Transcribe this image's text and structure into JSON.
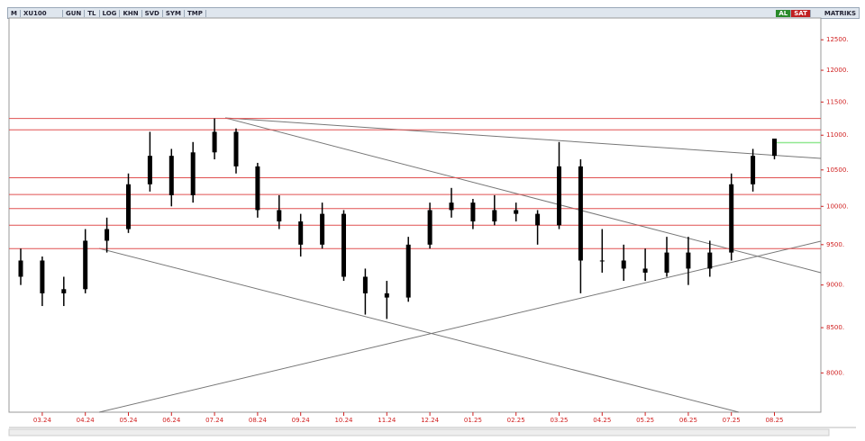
{
  "toolbar": {
    "logo": "M",
    "symbol": "XU100",
    "buttons": [
      "GUN",
      "TL",
      "LOG",
      "KHN",
      "SVD",
      "SYM",
      "TMP"
    ],
    "buy": "AL",
    "sell": "SAT",
    "brand": "MATRIKS"
  },
  "chart_data": {
    "type": "candlestick",
    "log_scale": true,
    "color": "#000000",
    "categories": [
      null,
      "03.24",
      null,
      "04.24",
      null,
      "05.24",
      null,
      "06.24",
      null,
      "07.24",
      null,
      "08.24",
      null,
      "09.24",
      null,
      "10.24",
      null,
      "11.24",
      null,
      "12.24",
      null,
      "01.25",
      null,
      "02.25",
      null,
      "03.25",
      null,
      "04.25",
      null,
      "05.25",
      null,
      "06.25",
      null,
      "07.25",
      null,
      "08.25"
    ],
    "open": [
      9100,
      9300,
      8900,
      8950,
      9550,
      9700,
      10300,
      10700,
      10150,
      10750,
      11050,
      10550,
      9950,
      9800,
      9500,
      9900,
      9100,
      8900,
      8850,
      9500,
      9950,
      10050,
      9800,
      9950,
      9900,
      9750,
      10550,
      9300,
      9300,
      9200,
      9150,
      9400,
      9200,
      9400,
      10300,
      10700
    ],
    "high": [
      9450,
      9350,
      9100,
      9700,
      9850,
      10450,
      11050,
      10800,
      10900,
      11250,
      11100,
      10600,
      10150,
      9900,
      10050,
      9950,
      9200,
      9050,
      9600,
      10050,
      10250,
      10100,
      10150,
      10050,
      9950,
      10900,
      10650,
      9700,
      9500,
      9450,
      9600,
      9600,
      9550,
      10450,
      10800,
      10950
    ],
    "low": [
      9000,
      8750,
      8750,
      8900,
      9400,
      9650,
      10200,
      10000,
      10050,
      10650,
      10450,
      9850,
      9700,
      9350,
      9450,
      9050,
      8650,
      8600,
      8800,
      9450,
      9850,
      9700,
      9750,
      9800,
      9500,
      9700,
      8900,
      9150,
      9050,
      9050,
      9100,
      9000,
      9100,
      9300,
      10200,
      10650
    ],
    "close": [
      9300,
      8900,
      8950,
      9550,
      9700,
      10300,
      10700,
      10150,
      10750,
      11050,
      10550,
      9950,
      9800,
      9500,
      9900,
      9100,
      8900,
      8850,
      9500,
      9950,
      10050,
      9800,
      9950,
      9900,
      9750,
      10550,
      9300,
      9300,
      9200,
      9150,
      9400,
      9200,
      9400,
      10300,
      10700,
      10950
    ],
    "levels": [
      11250,
      11080,
      10390,
      10160,
      9970,
      9750,
      9450
    ],
    "level_color": "#e05050",
    "marker": {
      "value": 10890,
      "color": "#90e890"
    },
    "ylim": [
      7590,
      12870
    ],
    "yticks": [
      {
        "value": 8000,
        "label": "8000."
      },
      {
        "value": 8500,
        "label": "8500."
      },
      {
        "value": 9000,
        "label": "9000."
      },
      {
        "value": 9500,
        "label": "9500."
      },
      {
        "value": 10000,
        "label": "10000."
      },
      {
        "value": 10500,
        "label": "10500."
      },
      {
        "value": 11000,
        "label": "11000."
      },
      {
        "value": 11500,
        "label": "11500."
      },
      {
        "value": 12000,
        "label": "12000."
      },
      {
        "value": 12500,
        "label": "12500."
      }
    ]
  }
}
